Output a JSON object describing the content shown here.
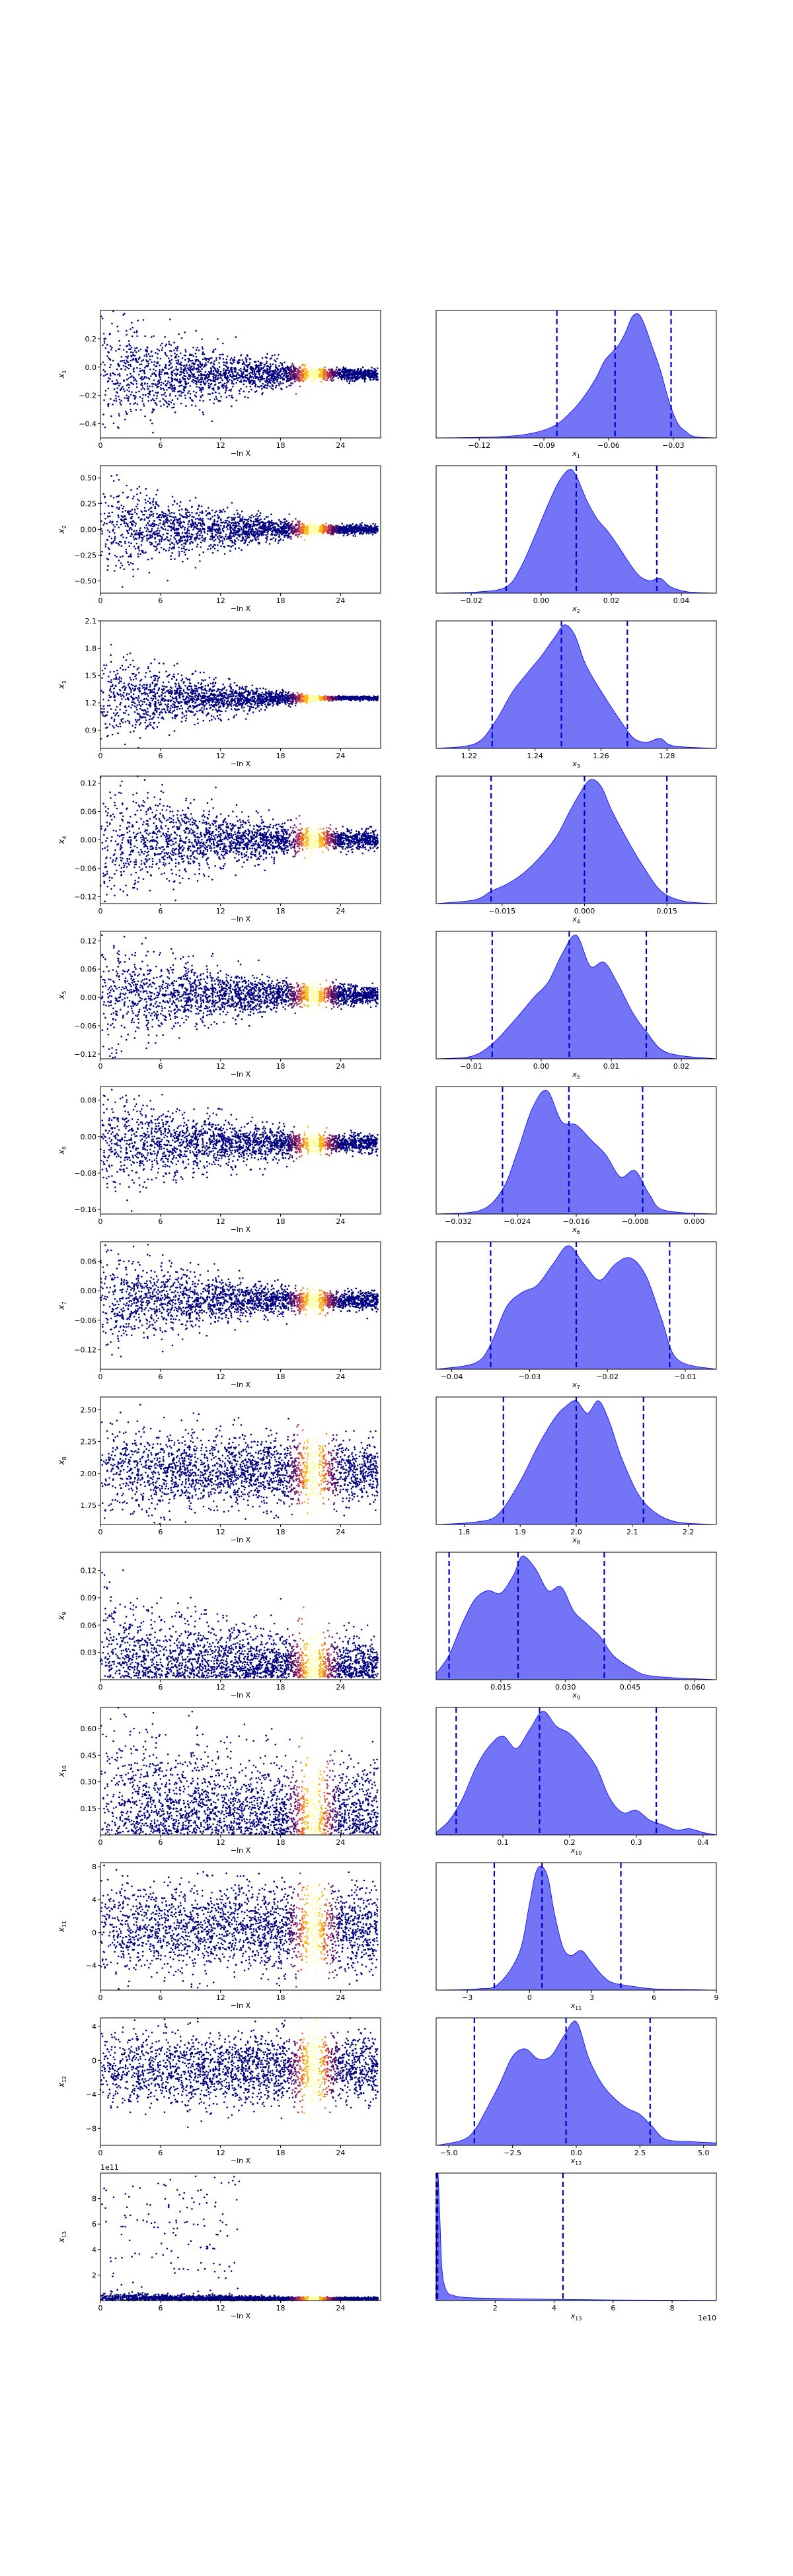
{
  "colors": {
    "scatter_cold": "#000080",
    "scatter_hot": [
      "#4b0c6b",
      "#a52c60",
      "#ed6925",
      "#fbb61a",
      "#fcffa4"
    ],
    "kde_fill": "#5a5cf5",
    "kde_edge": "#0000ff",
    "quantile_line": "#0000cc",
    "axis": "#000000"
  },
  "chart_data": [
    {
      "type": "scatter",
      "var_label": "x1",
      "x_label": "−ln X",
      "x_ticks": [
        0,
        6,
        12,
        18,
        24
      ],
      "xlim": [
        0,
        28
      ],
      "y_ticks": [
        0.2,
        0.0,
        -0.2,
        -0.4
      ],
      "y_tick_labels": [
        "0.2",
        "0.0",
        "−0.2",
        "−0.4"
      ],
      "ylim": [
        -0.5,
        0.4
      ],
      "y_center": -0.05,
      "y_spread_start": 0.25,
      "y_spread_end": 0.02,
      "n_points": 2400,
      "offset_text": ""
    },
    {
      "type": "area",
      "var_label": "x1",
      "x_ticks": [
        -0.12,
        -0.09,
        -0.06,
        -0.03
      ],
      "x_tick_labels": [
        "−0.12",
        "−0.09",
        "−0.06",
        "−0.03"
      ],
      "xlim": [
        -0.14,
        -0.01
      ],
      "quantiles": [
        -0.084,
        -0.057,
        -0.031
      ],
      "density_x": [
        -0.14,
        -0.11,
        -0.095,
        -0.085,
        -0.078,
        -0.072,
        -0.066,
        -0.062,
        -0.058,
        -0.055,
        -0.052,
        -0.049,
        -0.046,
        -0.043,
        -0.04,
        -0.036,
        -0.032,
        -0.028,
        -0.024,
        -0.02,
        -0.01
      ],
      "density_y": [
        0,
        0.01,
        0.04,
        0.1,
        0.2,
        0.32,
        0.48,
        0.62,
        0.7,
        0.76,
        0.86,
        0.98,
        1.0,
        0.9,
        0.75,
        0.55,
        0.3,
        0.12,
        0.05,
        0.01,
        0
      ]
    },
    {
      "type": "scatter",
      "var_label": "x2",
      "x_label": "−ln X",
      "x_ticks": [
        0,
        6,
        12,
        18,
        24
      ],
      "xlim": [
        0,
        28
      ],
      "y_ticks": [
        0.5,
        0.25,
        0.0,
        -0.25,
        -0.5
      ],
      "y_tick_labels": [
        "0.50",
        "0.25",
        "0.00",
        "−0.25",
        "−0.50"
      ],
      "ylim": [
        -0.62,
        0.62
      ],
      "y_center": 0.0,
      "y_spread_start": 0.3,
      "y_spread_end": 0.02,
      "n_points": 2400,
      "offset_text": ""
    },
    {
      "type": "area",
      "var_label": "x2",
      "x_ticks": [
        -0.02,
        0.0,
        0.02,
        0.04
      ],
      "x_tick_labels": [
        "−0.02",
        "0.00",
        "0.02",
        "0.04"
      ],
      "xlim": [
        -0.03,
        0.05
      ],
      "quantiles": [
        -0.01,
        0.01,
        0.033
      ],
      "density_x": [
        -0.03,
        -0.018,
        -0.01,
        -0.006,
        -0.002,
        0.002,
        0.005,
        0.008,
        0.01,
        0.013,
        0.016,
        0.019,
        0.022,
        0.025,
        0.028,
        0.031,
        0.034,
        0.037,
        0.042,
        0.05
      ],
      "density_y": [
        0,
        0.01,
        0.05,
        0.2,
        0.45,
        0.72,
        0.9,
        1.0,
        0.95,
        0.75,
        0.6,
        0.5,
        0.38,
        0.25,
        0.14,
        0.1,
        0.12,
        0.05,
        0.01,
        0
      ]
    },
    {
      "type": "scatter",
      "var_label": "x3",
      "x_label": "−ln X",
      "x_ticks": [
        0,
        6,
        12,
        18,
        24
      ],
      "xlim": [
        0,
        28
      ],
      "y_ticks": [
        2.1,
        1.8,
        1.5,
        1.2,
        0.9
      ],
      "y_tick_labels": [
        "2.1",
        "1.8",
        "1.5",
        "1.2",
        "0.9"
      ],
      "ylim": [
        0.7,
        2.1
      ],
      "y_center": 1.25,
      "y_spread_start": 0.3,
      "y_spread_end": 0.01,
      "n_points": 2400,
      "offset_text": ""
    },
    {
      "type": "area",
      "var_label": "x3",
      "x_ticks": [
        1.22,
        1.24,
        1.26,
        1.28
      ],
      "x_tick_labels": [
        "1.22",
        "1.24",
        "1.26",
        "1.28"
      ],
      "xlim": [
        1.21,
        1.295
      ],
      "quantiles": [
        1.227,
        1.248,
        1.268
      ],
      "density_x": [
        1.21,
        1.222,
        1.228,
        1.233,
        1.238,
        1.242,
        1.246,
        1.249,
        1.252,
        1.255,
        1.258,
        1.262,
        1.266,
        1.27,
        1.274,
        1.278,
        1.282,
        1.295
      ],
      "density_y": [
        0,
        0.04,
        0.22,
        0.45,
        0.62,
        0.75,
        0.9,
        1.0,
        0.92,
        0.7,
        0.55,
        0.38,
        0.22,
        0.08,
        0.05,
        0.08,
        0.02,
        0
      ]
    },
    {
      "type": "scatter",
      "var_label": "x4",
      "x_label": "−ln X",
      "x_ticks": [
        0,
        6,
        12,
        18,
        24
      ],
      "xlim": [
        0,
        28
      ],
      "y_ticks": [
        0.12,
        0.06,
        0.0,
        -0.06,
        -0.12
      ],
      "y_tick_labels": [
        "0.12",
        "0.06",
        "0.00",
        "−0.06",
        "−0.12"
      ],
      "ylim": [
        -0.135,
        0.135
      ],
      "y_center": 0.0,
      "y_spread_start": 0.08,
      "y_spread_end": 0.01,
      "n_points": 2400,
      "offset_text": ""
    },
    {
      "type": "area",
      "var_label": "x4",
      "x_ticks": [
        -0.015,
        0.0,
        0.015
      ],
      "x_tick_labels": [
        "−0.015",
        "0.000",
        "0.015"
      ],
      "xlim": [
        -0.027,
        0.024
      ],
      "quantiles": [
        -0.017,
        0.0,
        0.015
      ],
      "density_x": [
        -0.027,
        -0.02,
        -0.017,
        -0.014,
        -0.011,
        -0.008,
        -0.005,
        -0.003,
        -0.001,
        0.001,
        0.003,
        0.005,
        0.008,
        0.011,
        0.014,
        0.018,
        0.024
      ],
      "density_y": [
        0,
        0.03,
        0.1,
        0.16,
        0.25,
        0.38,
        0.55,
        0.72,
        0.88,
        1.0,
        0.95,
        0.75,
        0.5,
        0.28,
        0.1,
        0.02,
        0
      ]
    },
    {
      "type": "scatter",
      "var_label": "x5",
      "x_label": "−ln X",
      "x_ticks": [
        0,
        6,
        12,
        18,
        24
      ],
      "xlim": [
        0,
        28
      ],
      "y_ticks": [
        0.12,
        0.06,
        0.0,
        -0.06,
        -0.12
      ],
      "y_tick_labels": [
        "0.12",
        "0.06",
        "0.00",
        "−0.06",
        "−0.12"
      ],
      "ylim": [
        -0.13,
        0.14
      ],
      "y_center": 0.005,
      "y_spread_start": 0.07,
      "y_spread_end": 0.01,
      "n_points": 2400,
      "offset_text": ""
    },
    {
      "type": "area",
      "var_label": "x5",
      "x_ticks": [
        -0.01,
        0.0,
        0.01,
        0.02
      ],
      "x_tick_labels": [
        "−0.01",
        "0.00",
        "0.01",
        "0.02"
      ],
      "xlim": [
        -0.015,
        0.025
      ],
      "quantiles": [
        -0.007,
        0.004,
        0.015
      ],
      "density_x": [
        -0.015,
        -0.01,
        -0.007,
        -0.004,
        -0.001,
        0.001,
        0.003,
        0.005,
        0.007,
        0.009,
        0.011,
        0.013,
        0.015,
        0.018,
        0.025
      ],
      "density_y": [
        0,
        0.02,
        0.12,
        0.3,
        0.5,
        0.62,
        0.85,
        1.0,
        0.75,
        0.78,
        0.6,
        0.38,
        0.22,
        0.05,
        0
      ]
    },
    {
      "type": "scatter",
      "var_label": "x6",
      "x_label": "−ln X",
      "x_ticks": [
        0,
        6,
        12,
        18,
        24
      ],
      "xlim": [
        0,
        28
      ],
      "y_ticks": [
        0.08,
        0.0,
        -0.08,
        -0.16
      ],
      "y_tick_labels": [
        "0.08",
        "0.00",
        "−0.08",
        "−0.16"
      ],
      "ylim": [
        -0.17,
        0.11
      ],
      "y_center": -0.015,
      "y_spread_start": 0.07,
      "y_spread_end": 0.01,
      "n_points": 2400,
      "offset_text": ""
    },
    {
      "type": "area",
      "var_label": "x6",
      "x_ticks": [
        -0.032,
        -0.024,
        -0.016,
        -0.008,
        0.0
      ],
      "x_tick_labels": [
        "−0.032",
        "−0.024",
        "−0.016",
        "−0.008",
        "0.000"
      ],
      "xlim": [
        -0.035,
        0.003
      ],
      "quantiles": [
        -0.026,
        -0.017,
        -0.007
      ],
      "density_x": [
        -0.035,
        -0.029,
        -0.026,
        -0.024,
        -0.022,
        -0.02,
        -0.018,
        -0.016,
        -0.014,
        -0.012,
        -0.01,
        -0.008,
        -0.006,
        -0.004,
        0.003
      ],
      "density_y": [
        0,
        0.03,
        0.2,
        0.5,
        0.85,
        1.0,
        0.75,
        0.72,
        0.6,
        0.48,
        0.3,
        0.35,
        0.15,
        0.03,
        0
      ]
    },
    {
      "type": "scatter",
      "var_label": "x7",
      "x_label": "−ln X",
      "x_ticks": [
        0,
        6,
        12,
        18,
        24
      ],
      "xlim": [
        0,
        28
      ],
      "y_ticks": [
        0.06,
        0.0,
        -0.06,
        -0.12
      ],
      "y_tick_labels": [
        "0.06",
        "0.00",
        "−0.06",
        "−0.12"
      ],
      "ylim": [
        -0.16,
        0.1
      ],
      "y_center": -0.02,
      "y_spread_start": 0.06,
      "y_spread_end": 0.01,
      "n_points": 2400,
      "offset_text": ""
    },
    {
      "type": "area",
      "var_label": "x7",
      "x_ticks": [
        -0.04,
        -0.03,
        -0.02,
        -0.01
      ],
      "x_tick_labels": [
        "−0.04",
        "−0.03",
        "−0.02",
        "−0.01"
      ],
      "xlim": [
        -0.042,
        -0.006
      ],
      "quantiles": [
        -0.035,
        -0.024,
        -0.012
      ],
      "density_x": [
        -0.042,
        -0.037,
        -0.035,
        -0.033,
        -0.031,
        -0.029,
        -0.027,
        -0.025,
        -0.023,
        -0.021,
        -0.019,
        -0.017,
        -0.015,
        -0.013,
        -0.011,
        -0.006
      ],
      "density_y": [
        0,
        0.05,
        0.2,
        0.5,
        0.62,
        0.68,
        0.85,
        1.0,
        0.85,
        0.72,
        0.85,
        0.9,
        0.75,
        0.4,
        0.08,
        0
      ]
    },
    {
      "type": "scatter",
      "var_label": "x8",
      "x_label": "−ln X",
      "x_ticks": [
        0,
        6,
        12,
        18,
        24
      ],
      "xlim": [
        0,
        28
      ],
      "y_ticks": [
        2.5,
        2.25,
        2.0,
        1.75
      ],
      "y_tick_labels": [
        "2.50",
        "2.25",
        "2.00",
        "1.75"
      ],
      "ylim": [
        1.6,
        2.6
      ],
      "y_center": 2.02,
      "y_spread_start": 0.2,
      "y_spread_end": 0.12,
      "n_points": 2400,
      "offset_text": ""
    },
    {
      "type": "area",
      "var_label": "x8",
      "x_ticks": [
        1.8,
        1.9,
        2.0,
        2.1,
        2.2
      ],
      "x_tick_labels": [
        "1.8",
        "1.9",
        "2.0",
        "2.1",
        "2.2"
      ],
      "xlim": [
        1.75,
        2.25
      ],
      "quantiles": [
        1.87,
        2.0,
        2.12
      ],
      "density_x": [
        1.75,
        1.82,
        1.86,
        1.9,
        1.93,
        1.96,
        1.98,
        2.0,
        2.02,
        2.04,
        2.06,
        2.08,
        2.11,
        2.14,
        2.18,
        2.25
      ],
      "density_y": [
        0,
        0.02,
        0.08,
        0.35,
        0.62,
        0.85,
        0.95,
        1.0,
        0.9,
        1.0,
        0.82,
        0.55,
        0.25,
        0.1,
        0.02,
        0
      ]
    },
    {
      "type": "scatter",
      "var_label": "x9",
      "x_label": "−ln X",
      "x_ticks": [
        0,
        6,
        12,
        18,
        24
      ],
      "xlim": [
        0,
        28
      ],
      "y_ticks": [
        0.12,
        0.09,
        0.06,
        0.03
      ],
      "y_tick_labels": [
        "0.12",
        "0.09",
        "0.06",
        "0.03"
      ],
      "ylim": [
        0.0,
        0.14
      ],
      "y_center": 0.03,
      "y_spread_start": 0.05,
      "y_spread_end": 0.02,
      "n_points": 2400,
      "offset_text": ""
    },
    {
      "type": "area",
      "var_label": "x9",
      "x_ticks": [
        0.015,
        0.03,
        0.045,
        0.06
      ],
      "x_tick_labels": [
        "0.015",
        "0.030",
        "0.045",
        "0.060"
      ],
      "xlim": [
        0.0,
        0.065
      ],
      "quantiles": [
        0.003,
        0.019,
        0.039
      ],
      "density_x": [
        0.0,
        0.003,
        0.006,
        0.009,
        0.012,
        0.015,
        0.018,
        0.02,
        0.023,
        0.026,
        0.029,
        0.032,
        0.035,
        0.038,
        0.041,
        0.045,
        0.05,
        0.065
      ],
      "density_y": [
        0.05,
        0.2,
        0.45,
        0.65,
        0.72,
        0.7,
        0.85,
        1.0,
        0.9,
        0.72,
        0.75,
        0.55,
        0.45,
        0.35,
        0.2,
        0.1,
        0.03,
        0
      ]
    },
    {
      "type": "scatter",
      "var_label": "x10",
      "x_label": "−ln X",
      "x_ticks": [
        0,
        6,
        12,
        18,
        24
      ],
      "xlim": [
        0,
        28
      ],
      "y_ticks": [
        0.6,
        0.45,
        0.3,
        0.15
      ],
      "y_tick_labels": [
        "0.60",
        "0.45",
        "0.30",
        "0.15"
      ],
      "ylim": [
        0.0,
        0.72
      ],
      "y_center": 0.2,
      "y_spread_start": 0.3,
      "y_spread_end": 0.18,
      "n_points": 2400,
      "offset_text": ""
    },
    {
      "type": "area",
      "var_label": "x10",
      "x_ticks": [
        0.1,
        0.2,
        0.3,
        0.4
      ],
      "x_tick_labels": [
        "0.1",
        "0.2",
        "0.3",
        "0.4"
      ],
      "xlim": [
        0.0,
        0.42
      ],
      "quantiles": [
        0.03,
        0.155,
        0.33
      ],
      "density_x": [
        0.0,
        0.02,
        0.04,
        0.06,
        0.08,
        0.1,
        0.12,
        0.14,
        0.16,
        0.18,
        0.2,
        0.22,
        0.24,
        0.26,
        0.28,
        0.3,
        0.32,
        0.34,
        0.36,
        0.38,
        0.4,
        0.42
      ],
      "density_y": [
        0.02,
        0.12,
        0.3,
        0.55,
        0.72,
        0.8,
        0.7,
        0.85,
        1.0,
        0.88,
        0.82,
        0.7,
        0.55,
        0.3,
        0.18,
        0.2,
        0.12,
        0.08,
        0.04,
        0.05,
        0.02,
        0
      ]
    },
    {
      "type": "scatter",
      "var_label": "x11",
      "x_label": "−ln X",
      "x_ticks": [
        0,
        6,
        12,
        18,
        24
      ],
      "xlim": [
        0,
        28
      ],
      "y_ticks": [
        8,
        4,
        0,
        -4
      ],
      "y_tick_labels": [
        "8",
        "4",
        "0",
        "−4"
      ],
      "ylim": [
        -7,
        8.5
      ],
      "y_center": 0.5,
      "y_spread_start": 3.0,
      "y_spread_end": 2.5,
      "n_points": 2400,
      "offset_text": ""
    },
    {
      "type": "area",
      "var_label": "x11",
      "x_ticks": [
        -3,
        0,
        3,
        6,
        9
      ],
      "x_tick_labels": [
        "−3",
        "0",
        "3",
        "6",
        "9"
      ],
      "xlim": [
        -4.5,
        9
      ],
      "quantiles": [
        -1.7,
        0.6,
        4.4
      ],
      "density_x": [
        -4.5,
        -2.5,
        -1.5,
        -0.5,
        0.0,
        0.3,
        0.6,
        0.9,
        1.2,
        1.6,
        2.0,
        2.5,
        3.0,
        3.5,
        4.0,
        5.0,
        6.0,
        7.5,
        9.0
      ],
      "density_y": [
        0,
        0.01,
        0.05,
        0.3,
        0.7,
        0.95,
        1.0,
        0.9,
        0.62,
        0.35,
        0.28,
        0.32,
        0.22,
        0.12,
        0.06,
        0.03,
        0.01,
        0.005,
        0
      ]
    },
    {
      "type": "scatter",
      "var_label": "x12",
      "x_label": "−ln X",
      "x_ticks": [
        0,
        6,
        12,
        18,
        24
      ],
      "xlim": [
        0,
        28
      ],
      "y_ticks": [
        4,
        0,
        -4,
        -8
      ],
      "y_tick_labels": [
        "4",
        "0",
        "−4",
        "−8"
      ],
      "ylim": [
        -10,
        5
      ],
      "y_center": -1.0,
      "y_spread_start": 2.2,
      "y_spread_end": 2.0,
      "n_points": 2400,
      "offset_text": ""
    },
    {
      "type": "area",
      "var_label": "x12",
      "x_ticks": [
        -5.0,
        -2.5,
        0.0,
        2.5,
        5.0
      ],
      "x_tick_labels": [
        "−5.0",
        "−2.5",
        "0.0",
        "2.5",
        "5.0"
      ],
      "xlim": [
        -5.5,
        5.5
      ],
      "quantiles": [
        -4.0,
        -0.4,
        2.9
      ],
      "density_x": [
        -5.5,
        -4.5,
        -4.0,
        -3.5,
        -3.0,
        -2.5,
        -2.0,
        -1.5,
        -1.0,
        -0.5,
        0.0,
        0.5,
        1.0,
        1.5,
        2.0,
        2.5,
        3.0,
        3.5,
        4.5,
        5.5
      ],
      "density_y": [
        0,
        0.04,
        0.12,
        0.3,
        0.5,
        0.72,
        0.78,
        0.7,
        0.72,
        0.88,
        1.0,
        0.7,
        0.5,
        0.38,
        0.3,
        0.25,
        0.15,
        0.05,
        0.03,
        0.02
      ]
    },
    {
      "type": "scatter",
      "var_label": "x13",
      "x_label": "−ln X",
      "x_ticks": [
        0,
        6,
        12,
        18,
        24
      ],
      "xlim": [
        0,
        28
      ],
      "y_ticks": [
        8,
        6,
        4,
        2
      ],
      "y_tick_labels": [
        "8",
        "6",
        "4",
        "2"
      ],
      "ylim": [
        0,
        10
      ],
      "y_center": 0.15,
      "y_spread_start": 0.3,
      "y_spread_end": 0.05,
      "n_points": 2400,
      "outliers": 140,
      "offset_text": "1e11"
    },
    {
      "type": "area",
      "var_label": "x13",
      "x_ticks": [
        2,
        4,
        6,
        8
      ],
      "x_tick_labels": [
        "2",
        "4",
        "6",
        "8"
      ],
      "xlim": [
        0,
        9.5
      ],
      "quantiles": [
        0.005,
        0.05,
        4.3
      ],
      "offset_text": "1e10",
      "density_x": [
        0,
        0.05,
        0.12,
        0.2,
        0.35,
        0.6,
        1.0,
        1.5,
        2.5,
        4.0,
        6.0,
        9.5
      ],
      "density_y": [
        0,
        1.0,
        0.7,
        0.25,
        0.08,
        0.04,
        0.025,
        0.02,
        0.015,
        0.01,
        0.005,
        0.002
      ]
    }
  ]
}
